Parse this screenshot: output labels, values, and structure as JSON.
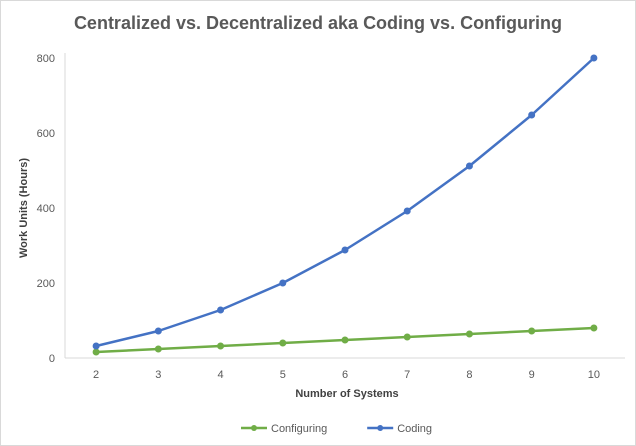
{
  "chart_data": {
    "type": "line",
    "title": "Centralized vs. Decentralized aka Coding vs. Configuring",
    "xlabel": "Number of Systems",
    "ylabel": "Work Units (Hours)",
    "x": [
      2,
      3,
      4,
      5,
      6,
      7,
      8,
      9,
      10
    ],
    "ylim": [
      0,
      800
    ],
    "yticks": [
      0,
      200,
      400,
      600,
      800
    ],
    "grid": false,
    "legend": "bottom",
    "series": [
      {
        "name": "Configuring",
        "color": "#70ad47",
        "values": [
          16,
          24,
          32,
          40,
          48,
          56,
          64,
          72,
          80
        ]
      },
      {
        "name": "Coding",
        "color": "#4472c4",
        "values": [
          32,
          72,
          128,
          200,
          288,
          392,
          512,
          648,
          800
        ]
      }
    ]
  }
}
